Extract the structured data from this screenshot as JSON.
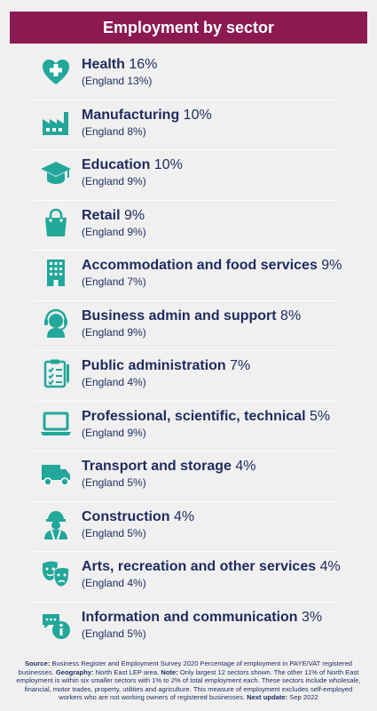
{
  "title": "Employment by sector",
  "chart_data": {
    "type": "table",
    "title": "Employment by sector",
    "series": [
      {
        "name": "England",
        "values": [
          13,
          8,
          9,
          9,
          7,
          9,
          4,
          9,
          5,
          5,
          4,
          5
        ]
      }
    ],
    "rows": [
      {
        "sector": "Health",
        "value": "16%",
        "england": "(England 13%)",
        "icon": "health-icon"
      },
      {
        "sector": "Manufacturing",
        "value": "10%",
        "england": "(England 8%)",
        "icon": "factory-icon"
      },
      {
        "sector": "Education",
        "value": "10%",
        "england": "(England 9%)",
        "icon": "graduation-cap-icon"
      },
      {
        "sector": "Retail",
        "value": "9%",
        "england": "(England 9%)",
        "icon": "shopping-bag-icon"
      },
      {
        "sector": "Accommodation and food services",
        "value": "9%",
        "england": "(England 7%)",
        "icon": "building-icon"
      },
      {
        "sector": "Business admin and support",
        "value": "8%",
        "england": "(England 9%)",
        "icon": "headset-icon"
      },
      {
        "sector": "Public administration",
        "value": "7%",
        "england": "(England 4%)",
        "icon": "clipboard-icon"
      },
      {
        "sector": "Professional, scientific, technical",
        "value": "5%",
        "england": "(England 9%)",
        "icon": "laptop-icon"
      },
      {
        "sector": "Transport and storage",
        "value": "4%",
        "england": "(England 5%)",
        "icon": "truck-icon"
      },
      {
        "sector": "Construction",
        "value": "4%",
        "england": "(England 5%)",
        "icon": "hard-hat-worker-icon"
      },
      {
        "sector": "Arts, recreation and other services",
        "value": "4%",
        "england": "(England 4%)",
        "icon": "theatre-masks-icon"
      },
      {
        "sector": "Information and communication",
        "value": "3%",
        "england": "(England 5%)",
        "icon": "info-chat-icon"
      }
    ]
  },
  "footer": {
    "source_label": "Source:",
    "source_text": "Business Register and Employment Survey 2020 Percentage of employment in PAYE/VAT registered businesses.",
    "geography_label": "Geography:",
    "geography_text": "North East LEP area.",
    "note_label": "Note:",
    "note_text": "Only largest 12 sectors shown. The other 11% of North East employment is within six smaller sectors with 1% to 2% of total employment each. These sectors include wholesale, financial, motor trades, property, utilities and agriculture. This measure of employment excludes self-employed workers who are not working owners of registered businesses.",
    "update_label": "Next update:",
    "update_text": "Sep 2022"
  },
  "colors": {
    "header_bg": "#8b1a52",
    "icon_teal": "#22a79a",
    "text_navy": "#1f2a5e",
    "background": "#f0f0f0"
  }
}
